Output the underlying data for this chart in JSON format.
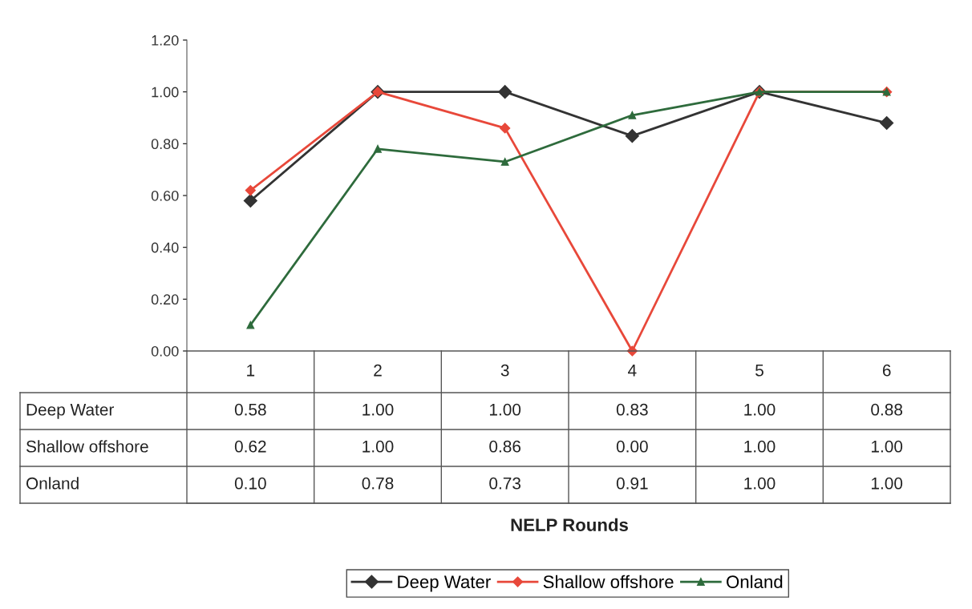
{
  "chart_data": {
    "type": "line",
    "annotations": [
      "NELP Rounds"
    ],
    "categories": [
      "1",
      "2",
      "3",
      "4",
      "5",
      "6"
    ],
    "series": [
      {
        "name": "Deep Water",
        "color": "#333333",
        "marker": "diamond",
        "values": [
          0.58,
          1.0,
          1.0,
          0.83,
          1.0,
          0.88
        ],
        "value_labels": [
          "0.58",
          "1.00",
          "1.00",
          "0.83",
          "1.00",
          "0.88"
        ]
      },
      {
        "name": "Shallow offshore",
        "color": "#e8483a",
        "marker": "diamond",
        "values": [
          0.62,
          1.0,
          0.86,
          0.0,
          1.0,
          1.0
        ],
        "value_labels": [
          "0.62",
          "1.00",
          "0.86",
          "0.00",
          "1.00",
          "1.00"
        ]
      },
      {
        "name": "Onland",
        "color": "#2e6b3c",
        "marker": "triangle",
        "values": [
          0.1,
          0.78,
          0.73,
          0.91,
          1.0,
          1.0
        ],
        "value_labels": [
          "0.10",
          "0.78",
          "0.73",
          "0.91",
          "1.00",
          "1.00"
        ]
      }
    ],
    "ylim": [
      0,
      1.2
    ],
    "yticks": [
      {
        "value": 0,
        "label": "0.00"
      },
      {
        "value": 0.2,
        "label": "0.20"
      },
      {
        "value": 0.4,
        "label": "0.40"
      },
      {
        "value": 0.6,
        "label": "0.60"
      },
      {
        "value": 0.8,
        "label": "0.80"
      },
      {
        "value": 1.0,
        "label": "1.00"
      },
      {
        "value": 1.2,
        "label": "1.20"
      }
    ],
    "grid": false,
    "legend": "bottom",
    "line_style": "solid"
  }
}
